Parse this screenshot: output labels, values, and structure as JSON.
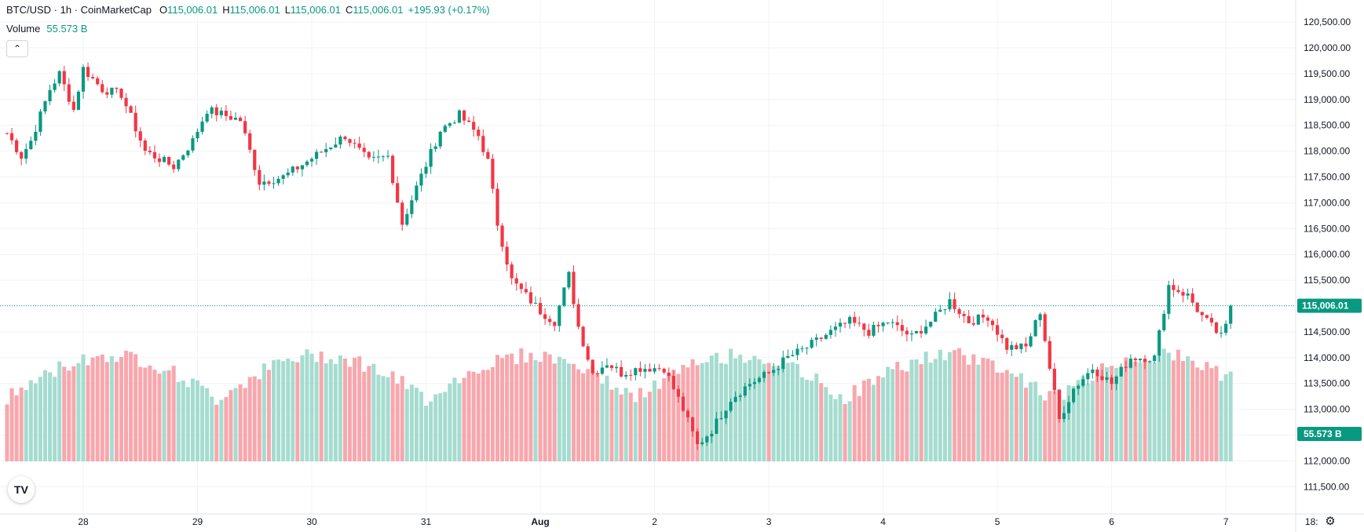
{
  "header": {
    "symbol": "BTC/USD · 1h · CoinMarketCap",
    "open_label": "O",
    "open": "115,006.01",
    "high_label": "H",
    "high": "115,006.01",
    "low_label": "L",
    "low": "115,006.01",
    "close_label": "C",
    "close": "115,006.01",
    "change": "+195.93 (+0.17%)",
    "volume_label": "Volume",
    "volume": "55.573 B",
    "collapse_icon": "chevron-up-icon"
  },
  "colors": {
    "up": "#089981",
    "down": "#f23645",
    "vol_up": "#a5dccf",
    "vol_down": "#f7a7ad",
    "grid": "#f0f3fa",
    "axis_text": "#131722"
  },
  "logo_text": "TV",
  "settings_icon": "gear-icon",
  "chart_data": {
    "type": "candlestick",
    "title": "BTC/USD · 1h · CoinMarketCap",
    "y_ticks": [
      "111,500.00",
      "112,000.00",
      "112,500.00",
      "113,000.00",
      "113,500.00",
      "114,000.00",
      "114,500.00",
      "115,000.00",
      "115,500.00",
      "116,000.00",
      "116,500.00",
      "117,000.00",
      "117,500.00",
      "118,000.00",
      "118,500.00",
      "119,000.00",
      "119,500.00",
      "120,000.00",
      "120,500.00"
    ],
    "x_ticks": [
      "28",
      "29",
      "30",
      "31",
      "Aug",
      "2",
      "3",
      "4",
      "5",
      "6",
      "7",
      "18:"
    ],
    "x_tick_hours": [
      24,
      48,
      72,
      96,
      120,
      144,
      168,
      192,
      216,
      240,
      264,
      282
    ],
    "ylim": [
      111200,
      120700
    ],
    "x_start_hour": 7,
    "last_price": 115006.01,
    "last_price_label": "115,006.01",
    "last_volume_label": "55.573 B",
    "anchors": [
      {
        "h": 7,
        "p": 118350
      },
      {
        "h": 10,
        "p": 117900
      },
      {
        "h": 12,
        "p": 118200
      },
      {
        "h": 16,
        "p": 119200
      },
      {
        "h": 18,
        "p": 119500
      },
      {
        "h": 21,
        "p": 118800
      },
      {
        "h": 23,
        "p": 119600
      },
      {
        "h": 27,
        "p": 119200
      },
      {
        "h": 31,
        "p": 119100
      },
      {
        "h": 36,
        "p": 118000
      },
      {
        "h": 42,
        "p": 117700
      },
      {
        "h": 46,
        "p": 118200
      },
      {
        "h": 49,
        "p": 118800
      },
      {
        "h": 56,
        "p": 118600
      },
      {
        "h": 60,
        "p": 117400
      },
      {
        "h": 65,
        "p": 117500
      },
      {
        "h": 70,
        "p": 117800
      },
      {
        "h": 78,
        "p": 118300
      },
      {
        "h": 83,
        "p": 117800
      },
      {
        "h": 87,
        "p": 117900
      },
      {
        "h": 90,
        "p": 116600
      },
      {
        "h": 93,
        "p": 117300
      },
      {
        "h": 98,
        "p": 118400
      },
      {
        "h": 102,
        "p": 118700
      },
      {
        "h": 106,
        "p": 118300
      },
      {
        "h": 108,
        "p": 117800
      },
      {
        "h": 110,
        "p": 116600
      },
      {
        "h": 113,
        "p": 115500
      },
      {
        "h": 116,
        "p": 115200
      },
      {
        "h": 119,
        "p": 114900
      },
      {
        "h": 122,
        "p": 114700
      },
      {
        "h": 125,
        "p": 115600
      },
      {
        "h": 127,
        "p": 114600
      },
      {
        "h": 130,
        "p": 113700
      },
      {
        "h": 133,
        "p": 113900
      },
      {
        "h": 136,
        "p": 113700
      },
      {
        "h": 140,
        "p": 113800
      },
      {
        "h": 145,
        "p": 113800
      },
      {
        "h": 149,
        "p": 113000
      },
      {
        "h": 152,
        "p": 112300
      },
      {
        "h": 155,
        "p": 112600
      },
      {
        "h": 159,
        "p": 113200
      },
      {
        "h": 163,
        "p": 113500
      },
      {
        "h": 167,
        "p": 113700
      },
      {
        "h": 171,
        "p": 114000
      },
      {
        "h": 175,
        "p": 114200
      },
      {
        "h": 180,
        "p": 114500
      },
      {
        "h": 184,
        "p": 114700
      },
      {
        "h": 188,
        "p": 114500
      },
      {
        "h": 192,
        "p": 114700
      },
      {
        "h": 197,
        "p": 114400
      },
      {
        "h": 201,
        "p": 114700
      },
      {
        "h": 205,
        "p": 115100
      },
      {
        "h": 209,
        "p": 114700
      },
      {
        "h": 213,
        "p": 114800
      },
      {
        "h": 217,
        "p": 114200
      },
      {
        "h": 221,
        "p": 114200
      },
      {
        "h": 224,
        "p": 114900
      },
      {
        "h": 226,
        "p": 113800
      },
      {
        "h": 228,
        "p": 112800
      },
      {
        "h": 231,
        "p": 113400
      },
      {
        "h": 235,
        "p": 113800
      },
      {
        "h": 239,
        "p": 113500
      },
      {
        "h": 243,
        "p": 114000
      },
      {
        "h": 248,
        "p": 114000
      },
      {
        "h": 251,
        "p": 115400
      },
      {
        "h": 255,
        "p": 115200
      },
      {
        "h": 258,
        "p": 114800
      },
      {
        "h": 262,
        "p": 114400
      },
      {
        "h": 265,
        "p": 115006
      }
    ]
  }
}
